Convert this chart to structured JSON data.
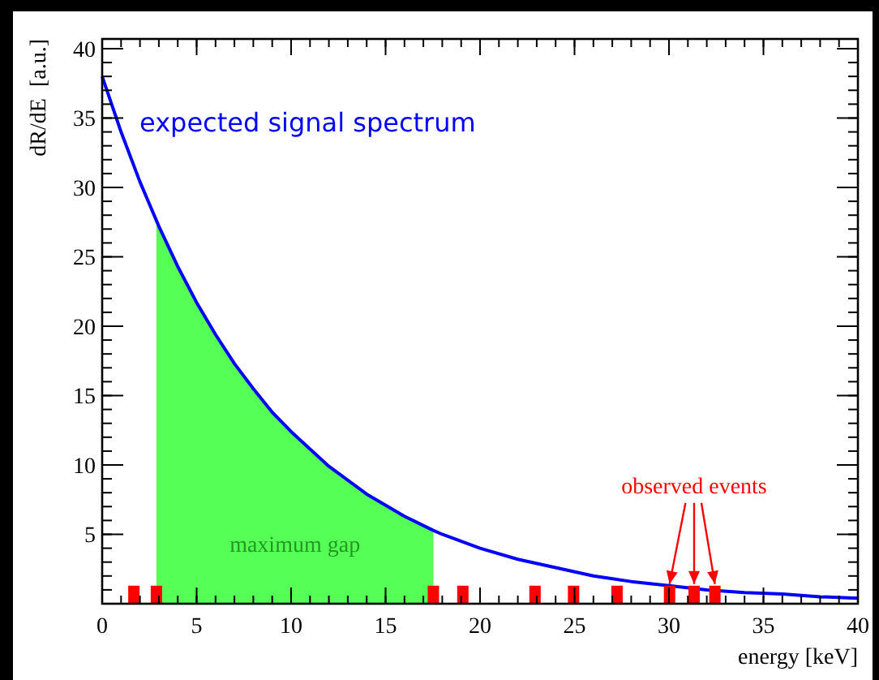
{
  "chart_data": {
    "type": "line",
    "xlabel": "energy [keV]",
    "ylabel": "dR/dE  [a.u.]",
    "xlim": [
      0,
      40
    ],
    "ylim": [
      0,
      40.7
    ],
    "xticks": [
      0,
      5,
      10,
      15,
      20,
      25,
      30,
      35,
      40
    ],
    "yticks": [
      5,
      10,
      15,
      20,
      25,
      30,
      35,
      40
    ],
    "grid": false,
    "series": [
      {
        "type": "area",
        "color": "#55ff55",
        "x": [
          2.87,
          4,
          5,
          6,
          7,
          8,
          9,
          10,
          12,
          14,
          16,
          17.53
        ],
        "values": [
          27.5,
          24.3,
          21.7,
          19.4,
          17.3,
          15.5,
          13.8,
          12.4,
          9.9,
          7.9,
          6.3,
          5.3
        ]
      },
      {
        "color": "#0000ff",
        "x": [
          0,
          1,
          2,
          3,
          4,
          5,
          6,
          7,
          8,
          9,
          10,
          12,
          14,
          16,
          17.5,
          18,
          20,
          22,
          24,
          26,
          28,
          30,
          32,
          34,
          36,
          38,
          40
        ],
        "values": [
          38,
          34,
          30.4,
          27.2,
          24.3,
          21.7,
          19.4,
          17.3,
          15.5,
          13.8,
          12.4,
          9.9,
          7.9,
          6.3,
          5.3,
          5,
          4,
          3.2,
          2.6,
          2,
          1.6,
          1.3,
          1.0,
          0.8,
          0.7,
          0.5,
          0.4
        ]
      },
      {
        "type": "bar",
        "color": "#ff0000",
        "x": [
          1.68,
          2.87,
          17.53,
          19.09,
          22.91,
          24.95,
          27.25,
          30.03,
          31.33,
          32.43
        ],
        "values": [
          1.3,
          1.3,
          1.3,
          1.3,
          1.3,
          1.3,
          1.3,
          1.3,
          1.3,
          1.3
        ]
      }
    ],
    "annotations": [
      "expected signal spectrum",
      "maximum gap",
      {
        "text": "observed events",
        "x": 31.33,
        "y": 1.3
      }
    ]
  }
}
